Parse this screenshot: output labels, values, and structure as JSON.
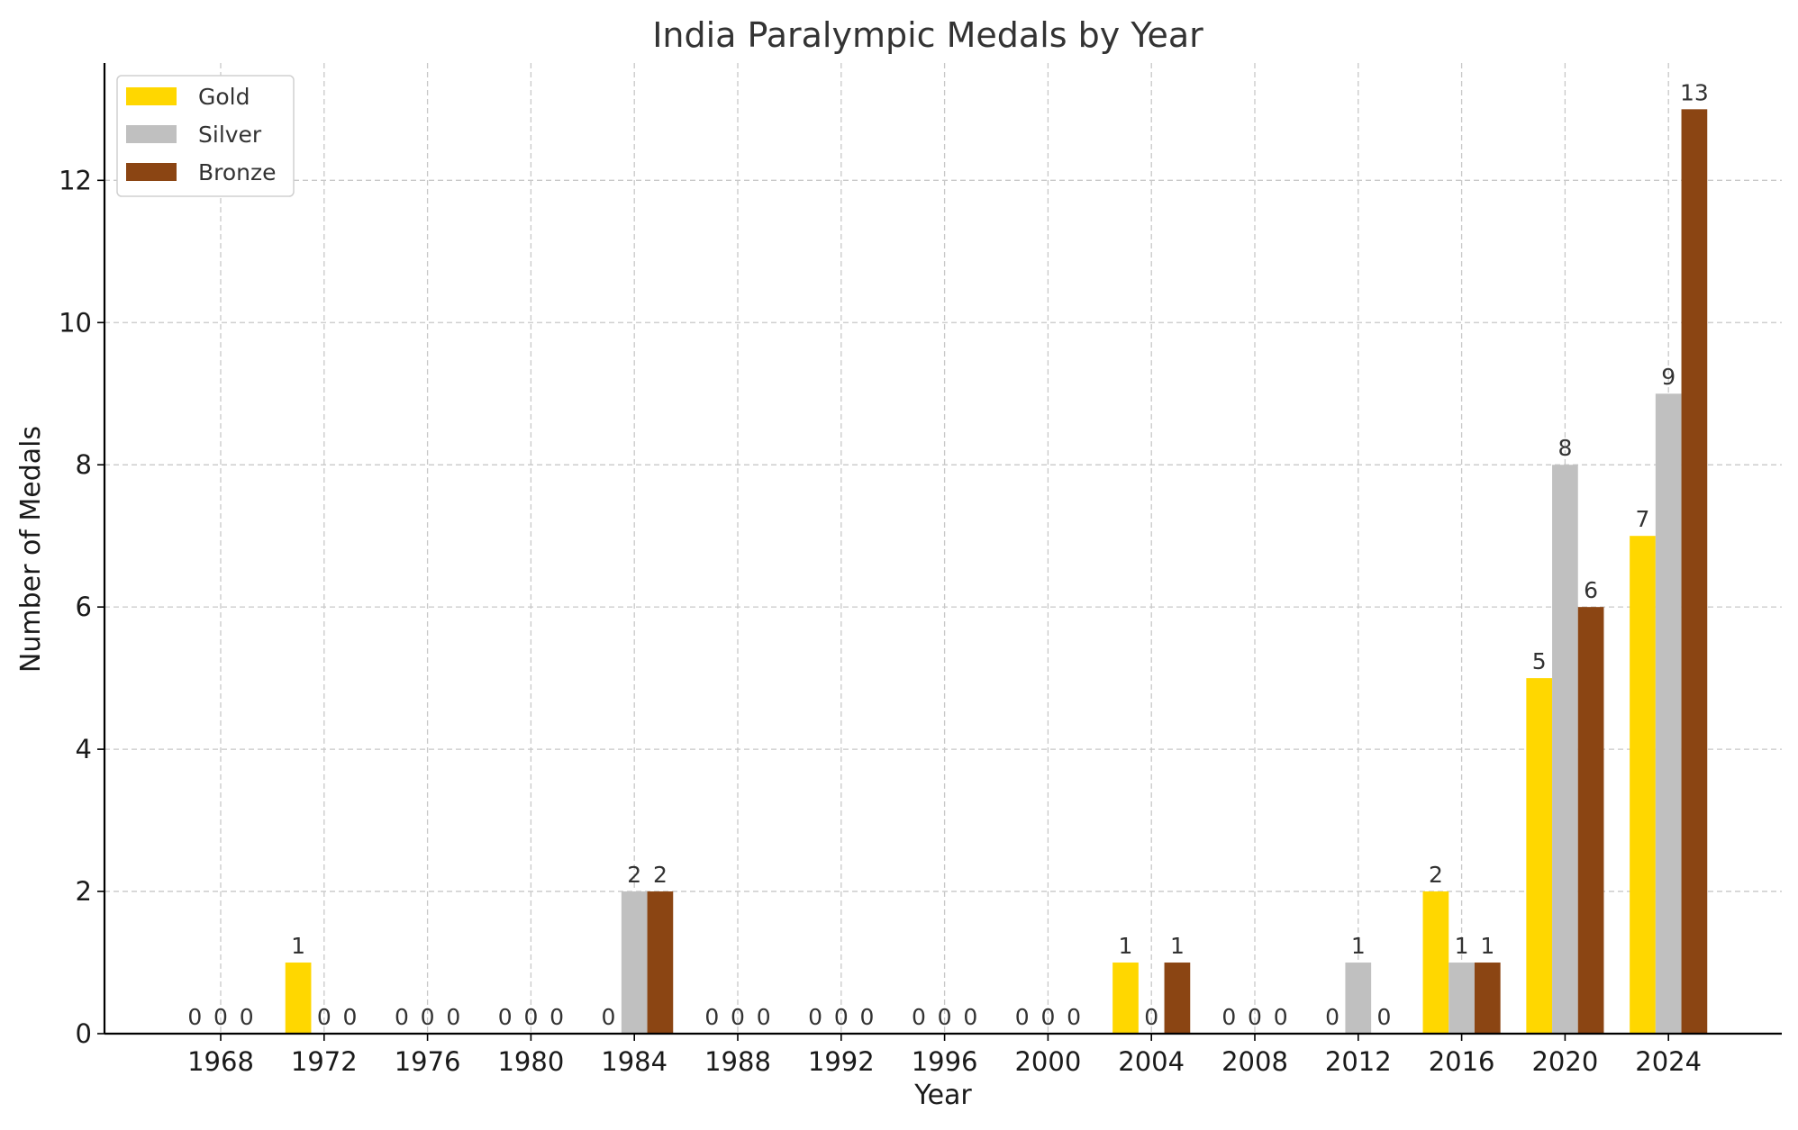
{
  "chart_data": {
    "type": "bar",
    "title": "India Paralympic Medals by Year",
    "xlabel": "Year",
    "ylabel": "Number of Medals",
    "categories": [
      "1968",
      "1972",
      "1976",
      "1980",
      "1984",
      "1988",
      "1992",
      "1996",
      "2000",
      "2004",
      "2008",
      "2012",
      "2016",
      "2020",
      "2024"
    ],
    "series": [
      {
        "name": "Gold",
        "color": "#FFD700",
        "values": [
          0,
          1,
          0,
          0,
          0,
          0,
          0,
          0,
          0,
          1,
          0,
          0,
          2,
          5,
          7
        ]
      },
      {
        "name": "Silver",
        "color": "#C0C0C0",
        "values": [
          0,
          0,
          0,
          0,
          2,
          0,
          0,
          0,
          0,
          0,
          0,
          1,
          1,
          8,
          9
        ]
      },
      {
        "name": "Bronze",
        "color": "#8B4513",
        "values": [
          0,
          0,
          0,
          0,
          2,
          0,
          0,
          0,
          0,
          1,
          0,
          0,
          1,
          6,
          13
        ]
      }
    ],
    "ylim": [
      0,
      13.65
    ],
    "yticks": [
      0,
      2,
      4,
      6,
      8,
      10,
      12
    ],
    "grid": true,
    "legend_position": "top-left"
  }
}
